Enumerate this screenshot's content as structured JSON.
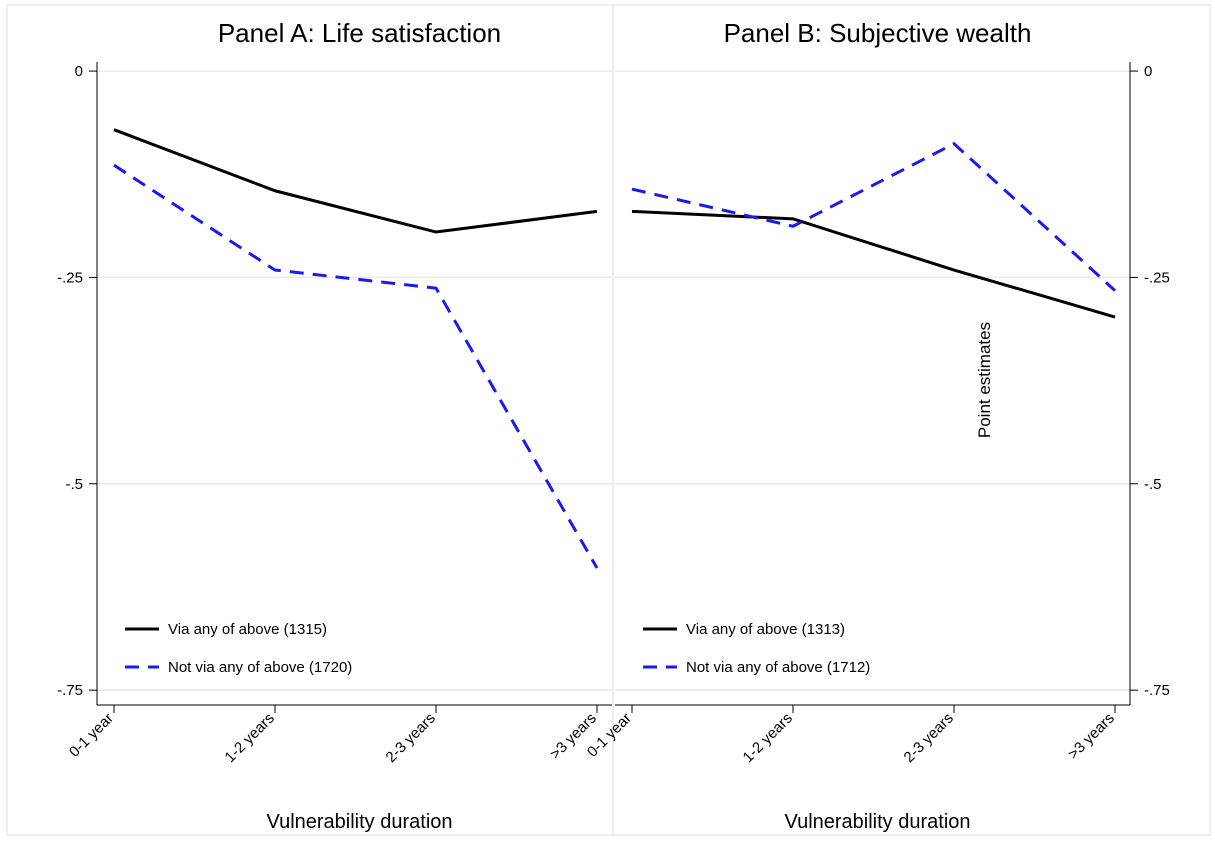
{
  "chart_data": [
    {
      "type": "line",
      "title": "Panel A: Life satisfaction",
      "x_label": "Vulnerability duration",
      "categories": [
        "0-1 year",
        "1-2 years",
        "2-3 years",
        ">3 years"
      ],
      "series": [
        {
          "name": "Via any of above (1315)",
          "color": "#000000",
          "linestyle": "solid",
          "values": [
            -0.071,
            -0.145,
            -0.195,
            -0.17
          ]
        },
        {
          "name": "Not via any of above (1720)",
          "color": "#1a1aee",
          "linestyle": "dashed",
          "values": [
            -0.114,
            -0.241,
            -0.263,
            -0.602
          ]
        }
      ],
      "ylim": [
        -0.768,
        0.011
      ],
      "yticks": [
        0,
        {
          "value": -0.25,
          "label": "-.25"
        },
        {
          "value": -0.5,
          "label": "-.5"
        },
        {
          "value": -0.75,
          "label": "-.75"
        }
      ],
      "yaxis_position": "left",
      "grid": true,
      "legend": "lower left"
    },
    {
      "type": "line",
      "title": "Panel B: Subjective wealth",
      "x_label": "Vulnerability duration",
      "categories": [
        "0-1 year",
        "1-2 years",
        "2-3 years",
        ">3 years"
      ],
      "series": [
        {
          "name": "Via any of above (1313)",
          "color": "#000000",
          "linestyle": "solid",
          "values": [
            -0.17,
            -0.179,
            -0.241,
            -0.298
          ]
        },
        {
          "name": "Not via any of above (1712)",
          "color": "#1a1aee",
          "linestyle": "dashed",
          "values": [
            -0.143,
            -0.188,
            -0.088,
            -0.266
          ]
        }
      ],
      "ylim": [
        -0.768,
        0.011
      ],
      "yticks": [
        0,
        {
          "value": -0.25,
          "label": "-.25"
        },
        {
          "value": -0.5,
          "label": "-.5"
        },
        {
          "value": -0.75,
          "label": "-.75"
        }
      ],
      "yaxis_position": "right",
      "grid": true,
      "legend": "lower left",
      "annotation": "Point estimates"
    }
  ]
}
